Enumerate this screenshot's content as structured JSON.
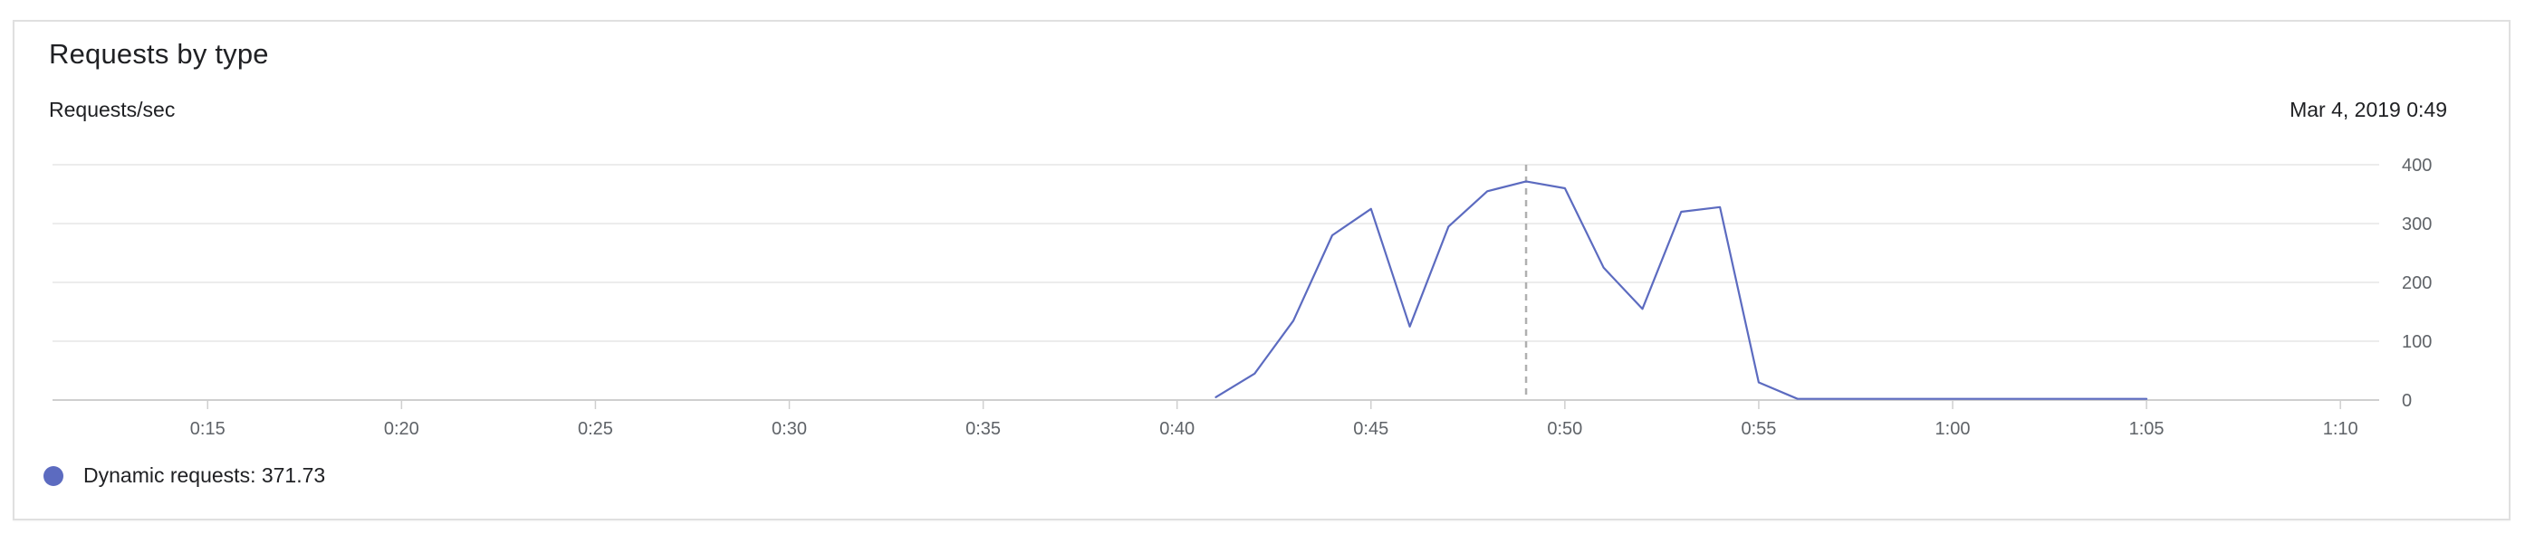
{
  "panel": {
    "title": "Requests by type",
    "unit_label": "Requests/sec",
    "hover_timestamp": "Mar 4, 2019 0:49"
  },
  "legend": {
    "series_text": "Dynamic requests: 371.73",
    "marker_color": "#5c6bc0"
  },
  "colors": {
    "line": "#5c6bc0",
    "grid": "#e6e6e6",
    "axis": "#cfcfcf",
    "hover_line": "#b0b0b0"
  },
  "chart_data": {
    "type": "line",
    "title": "Requests by type",
    "ylabel": "Requests/sec",
    "xlabel": "",
    "x_unit": "minutes",
    "xlim": [
      "0:11",
      "1:11"
    ],
    "ylim": [
      0,
      400
    ],
    "y_ticks": [
      0,
      100,
      200,
      300,
      400
    ],
    "x_ticks": [
      "0:15",
      "0:20",
      "0:25",
      "0:30",
      "0:35",
      "0:40",
      "0:45",
      "0:50",
      "0:55",
      "1:00",
      "1:05",
      "1:10"
    ],
    "grid": true,
    "legend_position": "bottom-left",
    "hover_x": "0:49",
    "series": [
      {
        "name": "Dynamic requests",
        "color": "#5c6bc0",
        "x": [
          "0:41",
          "0:42",
          "0:43",
          "0:44",
          "0:45",
          "0:46",
          "0:47",
          "0:48",
          "0:49",
          "0:50",
          "0:51",
          "0:52",
          "0:53",
          "0:54",
          "0:55",
          "0:56",
          "0:57",
          "0:58",
          "0:59",
          "1:00",
          "1:01",
          "1:02",
          "1:03",
          "1:04",
          "1:05"
        ],
        "values": [
          5,
          45,
          135,
          280,
          325,
          125,
          295,
          355,
          371.73,
          360,
          225,
          155,
          320,
          328,
          30,
          2,
          2,
          2,
          2,
          2,
          2,
          2,
          2,
          2,
          2
        ]
      }
    ]
  }
}
